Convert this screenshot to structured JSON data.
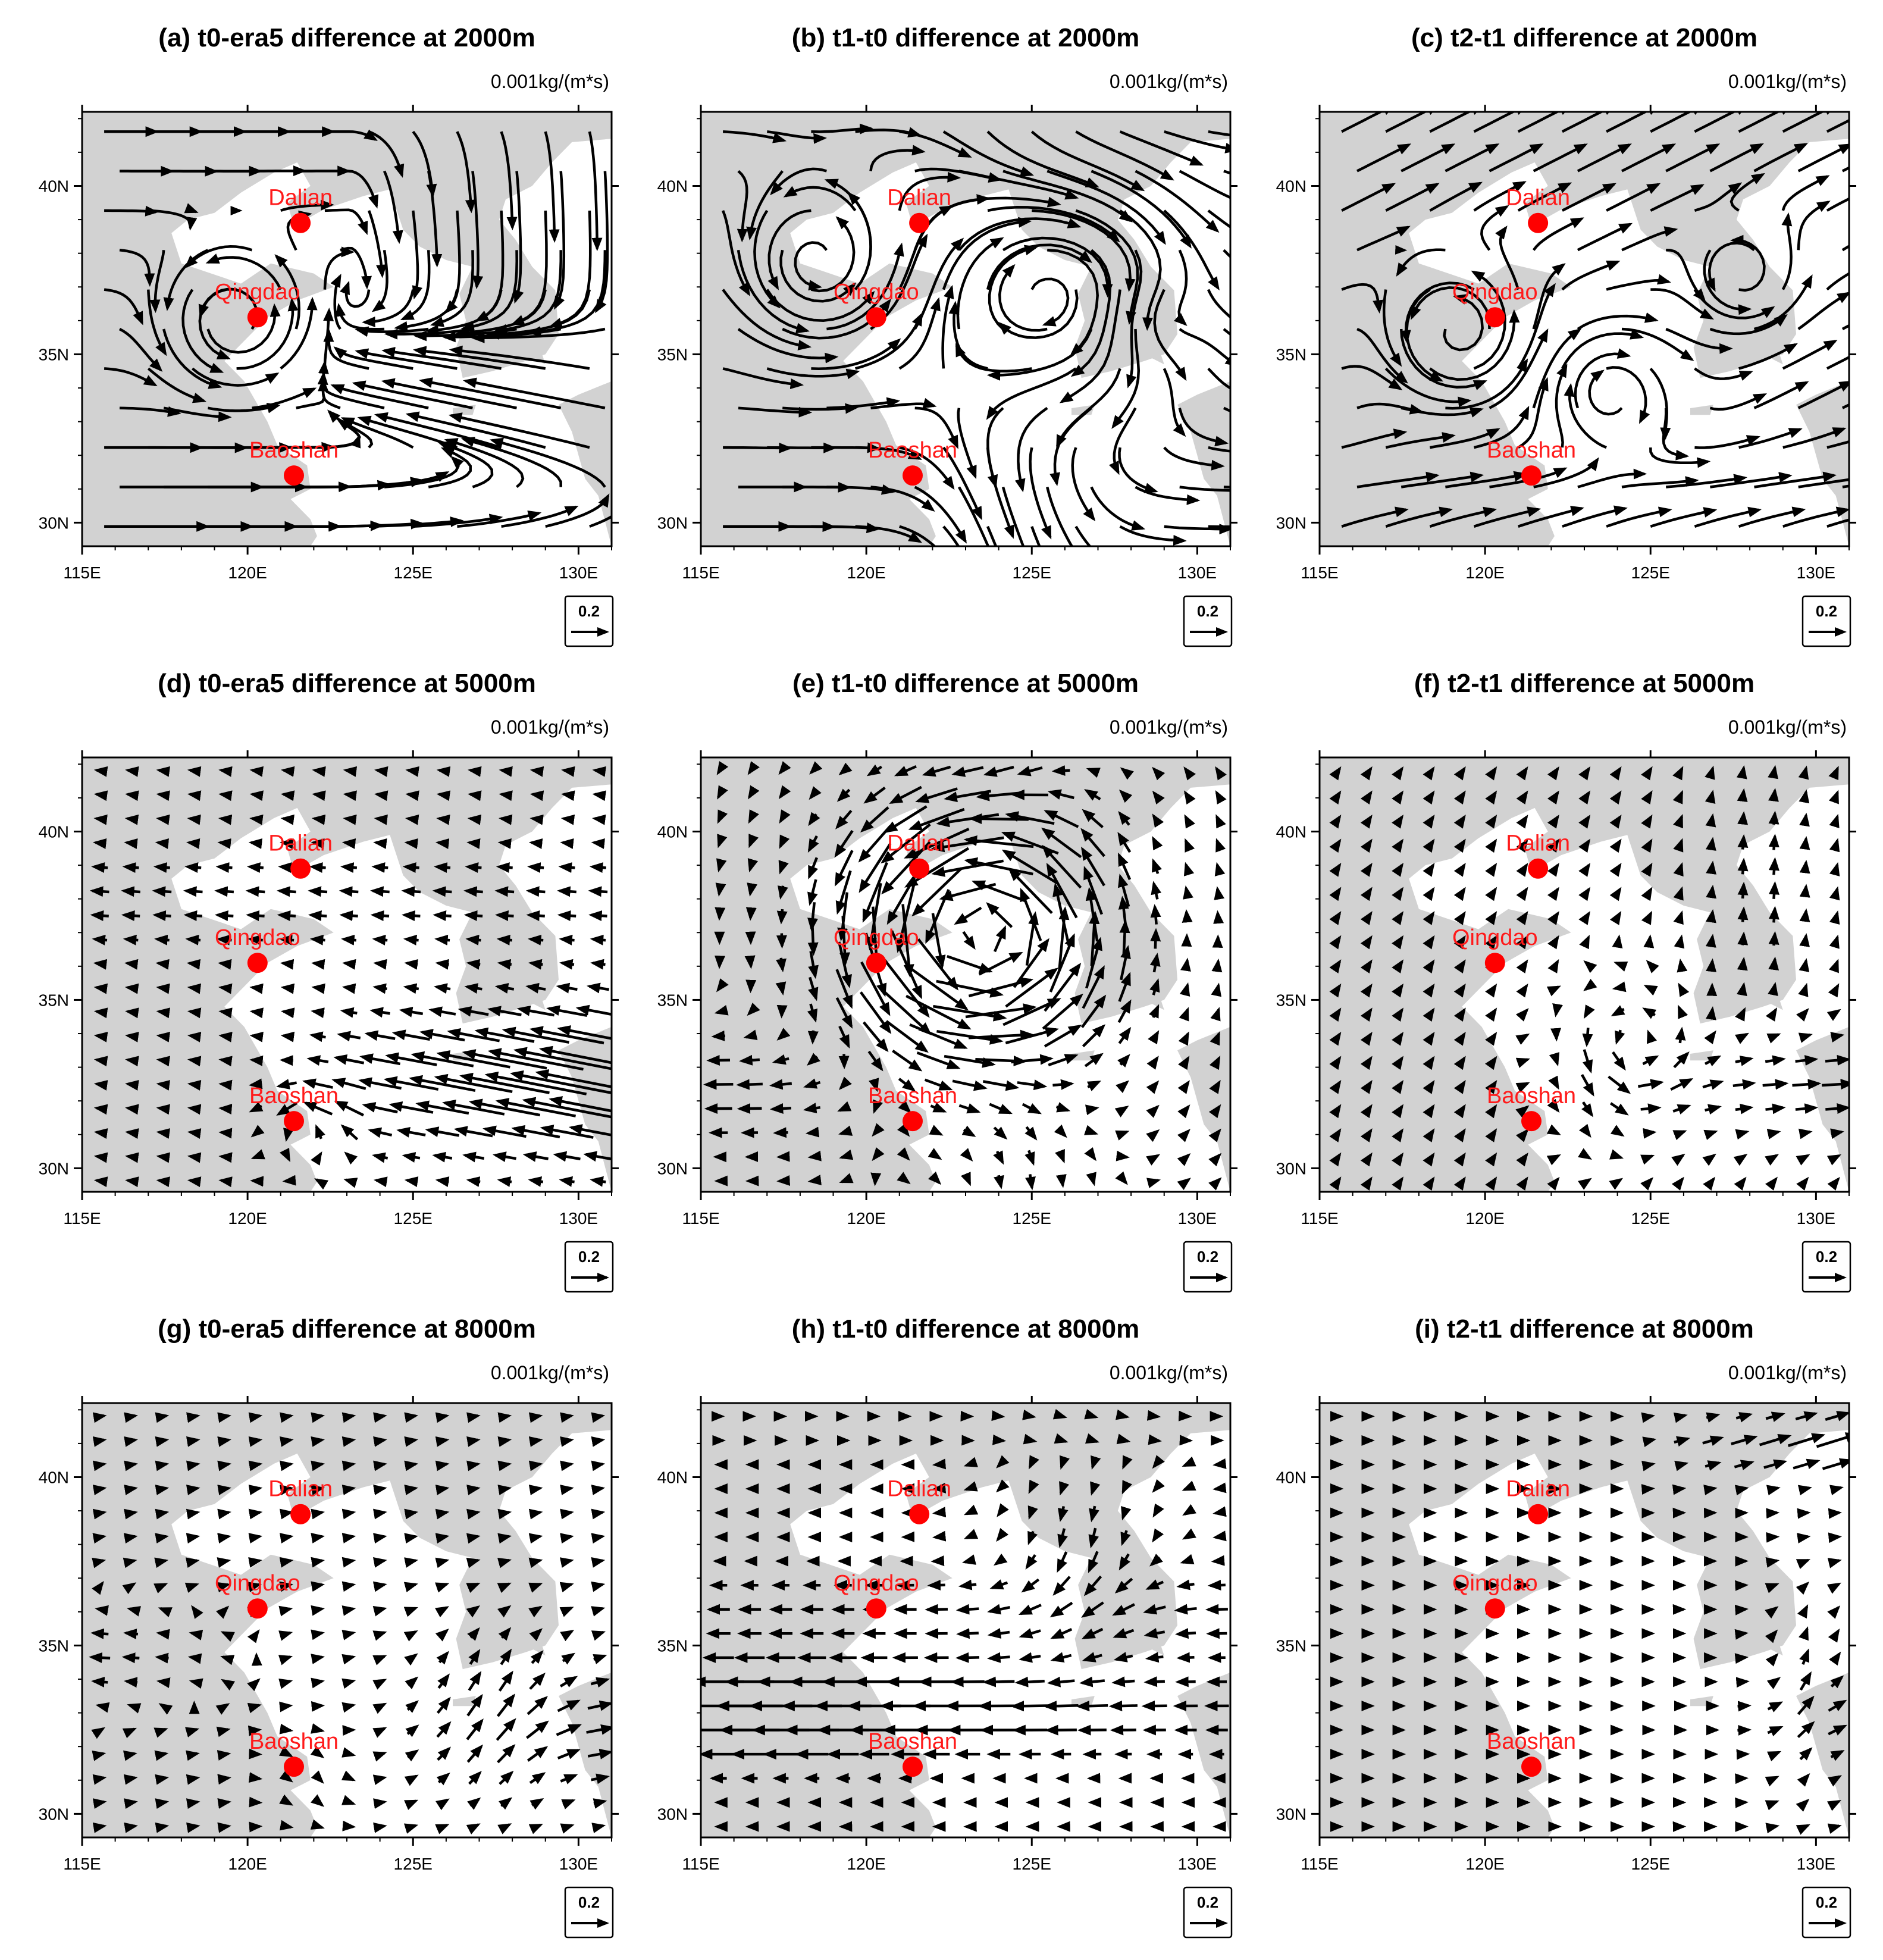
{
  "units": "0.001kg/(m*s)",
  "ref_vector_label": "0.2",
  "lon_ticks": [
    "115E",
    "120E",
    "125E",
    "130E"
  ],
  "lat_ticks": [
    "30N",
    "35N",
    "40N"
  ],
  "lon_values": [
    115,
    120,
    125,
    130
  ],
  "lat_values": [
    30,
    35,
    40
  ],
  "extent": {
    "lon": [
      115,
      131
    ],
    "lat": [
      29.3,
      42.2
    ]
  },
  "stations": [
    {
      "name": "Dalian",
      "lon": 121.6,
      "lat": 38.9
    },
    {
      "name": "Qingdao",
      "lon": 120.3,
      "lat": 36.1
    },
    {
      "name": "Baoshan",
      "lon": 121.4,
      "lat": 31.4
    }
  ],
  "panels": [
    {
      "title": "(a) t0-era5 difference at 2000m",
      "style": "streamline",
      "pattern": "a"
    },
    {
      "title": "(b) t1-t0 difference at 2000m",
      "style": "streamline",
      "pattern": "b"
    },
    {
      "title": "(c) t2-t1 difference at 2000m",
      "style": "streamline",
      "pattern": "c"
    },
    {
      "title": "(d) t0-era5 difference at 5000m",
      "style": "vector",
      "pattern": "d"
    },
    {
      "title": "(e) t1-t0 difference at 5000m",
      "style": "vector",
      "pattern": "e"
    },
    {
      "title": "(f) t2-t1 difference at 5000m",
      "style": "vector",
      "pattern": "f"
    },
    {
      "title": "(g) t0-era5 difference at 8000m",
      "style": "vector",
      "pattern": "g"
    },
    {
      "title": "(h) t1-t0 difference at 8000m",
      "style": "vector",
      "pattern": "h"
    },
    {
      "title": "(i) t2-t1 difference at 8000m",
      "style": "vector",
      "pattern": "i"
    }
  ]
}
